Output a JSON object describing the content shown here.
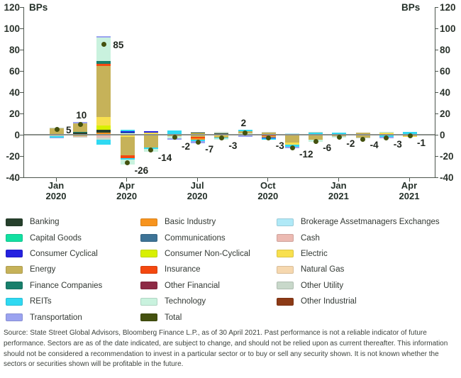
{
  "axes": {
    "unit_left": "BPs",
    "unit_right": "BPs",
    "y_ticks": [
      120,
      100,
      80,
      60,
      40,
      20,
      0,
      -20,
      -40
    ],
    "y_max": 120,
    "y_min": -40
  },
  "sectors": {
    "banking": {
      "label": "Banking",
      "color": "#26402c"
    },
    "capital_goods": {
      "label": "Capital Goods",
      "color": "#12e0a1"
    },
    "consumer_cyclical": {
      "label": "Consumer Cyclical",
      "color": "#2521e0"
    },
    "energy": {
      "label": "Energy",
      "color": "#c6b259"
    },
    "finance_companies": {
      "label": "Finance Companies",
      "color": "#187f6b"
    },
    "reits": {
      "label": "REITs",
      "color": "#2fd9f2"
    },
    "transportation": {
      "label": "Transportation",
      "color": "#9ba3f0"
    },
    "basic_industry": {
      "label": "Basic Industry",
      "color": "#f7941e"
    },
    "communications": {
      "label": "Communications",
      "color": "#3d7396"
    },
    "consumer_non_cyclical": {
      "label": "Consumer Non-Cyclical",
      "color": "#d8f000"
    },
    "insurance": {
      "label": "Insurance",
      "color": "#f4480f"
    },
    "other_financial": {
      "label": "Other Financial",
      "color": "#8d2a45"
    },
    "technology": {
      "label": "Technology",
      "color": "#c9f2de"
    },
    "total": {
      "label": "Total",
      "color": "#44510f"
    },
    "brokerage": {
      "label": "Brokerage Assetmanagers Exchanges",
      "color": "#b0e9f7"
    },
    "cash": {
      "label": "Cash",
      "color": "#ecbab2"
    },
    "electric": {
      "label": "Electric",
      "color": "#f8e04e"
    },
    "natural_gas": {
      "label": "Natural Gas",
      "color": "#f6d8af"
    },
    "other_utility": {
      "label": "Other Utility",
      "color": "#c8d8ca"
    },
    "other_industrial": {
      "label": "Other Industrial",
      "color": "#8c3a16"
    }
  },
  "legend": {
    "columns": [
      [
        "banking",
        "capital_goods",
        "consumer_cyclical",
        "energy",
        "finance_companies",
        "reits",
        "transportation"
      ],
      [
        "basic_industry",
        "communications",
        "consumer_non_cyclical",
        "insurance",
        "other_financial",
        "technology",
        "total"
      ],
      [
        "brokerage",
        "cash",
        "electric",
        "natural_gas",
        "other_utility",
        "other_industrial"
      ]
    ]
  },
  "chart_data": {
    "type": "bar",
    "subtype": "stacked-bars-with-total-dots",
    "title": "",
    "ylabel": "BPs",
    "ylim": [
      -40,
      120
    ],
    "total_marker_sector": "total",
    "months": [
      {
        "id": "2020-01",
        "tick_label": [
          "Jan",
          "2020"
        ],
        "total": 5,
        "label": "5",
        "label_placement": "right",
        "pos": [
          {
            "s": "insurance",
            "v": 0.6
          },
          {
            "s": "energy",
            "v": 5.4
          },
          {
            "s": "other_utility",
            "v": 1.0
          }
        ],
        "neg": [
          {
            "s": "banking",
            "v": 0.5
          },
          {
            "s": "other_utility",
            "v": 0.9
          },
          {
            "s": "reits",
            "v": 1.0
          },
          {
            "s": "transportation",
            "v": 1.1
          }
        ]
      },
      {
        "id": "2020-02",
        "tick_label": null,
        "total": 10,
        "label": "10",
        "label_placement": "above",
        "pos": [
          {
            "s": "insurance",
            "v": 0.9
          },
          {
            "s": "banking",
            "v": 0.8
          },
          {
            "s": "finance_companies",
            "v": 0.8
          },
          {
            "s": "energy",
            "v": 8.0
          },
          {
            "s": "transportation",
            "v": 1.5
          }
        ],
        "neg": [
          {
            "s": "energy",
            "v": 1.0
          },
          {
            "s": "cash",
            "v": 0.9
          },
          {
            "s": "other_utility",
            "v": 0.9
          }
        ]
      },
      {
        "id": "2020-03",
        "tick_label": null,
        "total": 85,
        "label": "85",
        "label_placement": "right",
        "pos": [
          {
            "s": "basic_industry",
            "v": 2
          },
          {
            "s": "banking",
            "v": 3
          },
          {
            "s": "consumer_non_cyclical",
            "v": 4
          },
          {
            "s": "electric",
            "v": 8
          },
          {
            "s": "energy",
            "v": 48
          },
          {
            "s": "insurance",
            "v": 2
          },
          {
            "s": "finance_companies",
            "v": 2.5
          },
          {
            "s": "technology",
            "v": 22
          },
          {
            "s": "transportation",
            "v": 1.5
          }
        ],
        "neg": [
          {
            "s": "cash",
            "v": 2.5
          },
          {
            "s": "other_utility",
            "v": 2.0
          },
          {
            "s": "reits",
            "v": 5.0
          }
        ]
      },
      {
        "id": "2020-04",
        "tick_label": [
          "Apr",
          "2020"
        ],
        "total": -26,
        "label": "-26",
        "label_placement": "below-right",
        "pos": [
          {
            "s": "banking",
            "v": 1.0
          },
          {
            "s": "finance_companies",
            "v": 1.2
          },
          {
            "s": "consumer_cyclical",
            "v": 1.2
          },
          {
            "s": "reits",
            "v": 1.6
          }
        ],
        "neg": [
          {
            "s": "electric",
            "v": 1.8
          },
          {
            "s": "energy",
            "v": 17.5
          },
          {
            "s": "insurance",
            "v": 2.8
          },
          {
            "s": "reits",
            "v": 1.5
          },
          {
            "s": "technology",
            "v": 4.4
          }
        ]
      },
      {
        "id": "2020-05",
        "tick_label": null,
        "total": -14,
        "label": "-14",
        "label_placement": "below-right",
        "pos": [
          {
            "s": "banking",
            "v": 0.9
          },
          {
            "s": "electric",
            "v": 1.2
          },
          {
            "s": "consumer_cyclical",
            "v": 1.4
          }
        ],
        "neg": [
          {
            "s": "energy",
            "v": 12.0
          },
          {
            "s": "reits",
            "v": 1.5
          },
          {
            "s": "technology",
            "v": 2.5
          }
        ]
      },
      {
        "id": "2020-06",
        "tick_label": null,
        "total": -2,
        "label": "-2",
        "label_placement": "below-right",
        "pos": [
          {
            "s": "other_utility",
            "v": 0.6
          },
          {
            "s": "reits",
            "v": 3.4
          }
        ],
        "neg": [
          {
            "s": "energy",
            "v": 1.6
          },
          {
            "s": "technology",
            "v": 1.5
          },
          {
            "s": "transportation",
            "v": 1.9
          }
        ]
      },
      {
        "id": "2020-07",
        "tick_label": [
          "Jul",
          "2020"
        ],
        "total": -7,
        "label": "-7",
        "label_placement": "below-right",
        "pos": [
          {
            "s": "electric",
            "v": 1.2
          },
          {
            "s": "banking",
            "v": 0.7
          },
          {
            "s": "other_utility",
            "v": 1.1
          }
        ],
        "neg": [
          {
            "s": "energy",
            "v": 1.7
          },
          {
            "s": "insurance",
            "v": 1.6
          },
          {
            "s": "basic_industry",
            "v": 1.2
          },
          {
            "s": "reits",
            "v": 1.4
          },
          {
            "s": "transportation",
            "v": 2.1
          }
        ]
      },
      {
        "id": "2020-08",
        "tick_label": null,
        "total": -3,
        "label": "-3",
        "label_placement": "below-right",
        "pos": [
          {
            "s": "energy",
            "v": 1.0
          },
          {
            "s": "banking",
            "v": 0.6
          },
          {
            "s": "other_utility",
            "v": 1.0
          }
        ],
        "neg": [
          {
            "s": "electric",
            "v": 1.2
          },
          {
            "s": "energy",
            "v": 1.2
          },
          {
            "s": "reits",
            "v": 1.0
          },
          {
            "s": "technology",
            "v": 1.1
          }
        ]
      },
      {
        "id": "2020-09",
        "tick_label": null,
        "total": 2,
        "label": "2",
        "label_placement": "above",
        "pos": [
          {
            "s": "technology",
            "v": 1.2
          },
          {
            "s": "energy",
            "v": 2.0
          },
          {
            "s": "reits",
            "v": 1.3
          }
        ],
        "neg": [
          {
            "s": "other_utility",
            "v": 0.9
          },
          {
            "s": "transportation",
            "v": 1.4
          }
        ]
      },
      {
        "id": "2020-10",
        "tick_label": [
          "Oct",
          "2020"
        ],
        "total": -3,
        "label": "-3",
        "label_placement": "below-right",
        "pos": [
          {
            "s": "energy",
            "v": 2.0
          },
          {
            "s": "other_utility",
            "v": 0.6
          }
        ],
        "neg": [
          {
            "s": "insurance",
            "v": 1.0
          },
          {
            "s": "energy",
            "v": 1.6
          },
          {
            "s": "consumer_cyclical",
            "v": 0.9
          },
          {
            "s": "reits",
            "v": 1.0
          }
        ]
      },
      {
        "id": "2020-11",
        "tick_label": null,
        "total": -12,
        "label": "-12",
        "label_placement": "below-right",
        "pos": [
          {
            "s": "other_utility",
            "v": 0.9
          },
          {
            "s": "brokerage",
            "v": 0.6
          }
        ],
        "neg": [
          {
            "s": "energy",
            "v": 7.5
          },
          {
            "s": "electric",
            "v": 1.5
          },
          {
            "s": "reits",
            "v": 2.0
          },
          {
            "s": "transportation",
            "v": 1.8
          }
        ]
      },
      {
        "id": "2020-12",
        "tick_label": null,
        "total": -6,
        "label": "-6",
        "label_placement": "below-right",
        "pos": [
          {
            "s": "electric",
            "v": 0.8
          },
          {
            "s": "reits",
            "v": 1.1
          },
          {
            "s": "other_utility",
            "v": 0.5
          }
        ],
        "neg": [
          {
            "s": "energy",
            "v": 4.8
          },
          {
            "s": "technology",
            "v": 2.0
          }
        ]
      },
      {
        "id": "2021-01",
        "tick_label": [
          "Jan",
          "2021"
        ],
        "total": -2,
        "label": "-2",
        "label_placement": "below-right",
        "pos": [
          {
            "s": "energy",
            "v": 0.8
          },
          {
            "s": "reits",
            "v": 1.5
          }
        ],
        "neg": [
          {
            "s": "energy",
            "v": 1.2
          },
          {
            "s": "other_utility",
            "v": 0.8
          },
          {
            "s": "technology",
            "v": 0.8
          }
        ]
      },
      {
        "id": "2021-02",
        "tick_label": null,
        "total": -4,
        "label": "-4",
        "label_placement": "below-right",
        "pos": [
          {
            "s": "electric",
            "v": 1.0
          },
          {
            "s": "energy",
            "v": 1.0
          }
        ],
        "neg": [
          {
            "s": "energy",
            "v": 2.4
          },
          {
            "s": "other_utility",
            "v": 1.0
          }
        ]
      },
      {
        "id": "2021-03",
        "tick_label": null,
        "total": -3,
        "label": "-3",
        "label_placement": "below-right",
        "pos": [
          {
            "s": "energy",
            "v": 0.8
          },
          {
            "s": "electric",
            "v": 1.6
          },
          {
            "s": "brokerage",
            "v": 0.5
          }
        ],
        "neg": [
          {
            "s": "reits",
            "v": 2.0
          },
          {
            "s": "transportation",
            "v": 1.3
          }
        ]
      },
      {
        "id": "2021-04",
        "tick_label": [
          "Apr",
          "2021"
        ],
        "total": -1,
        "label": "-1",
        "label_placement": "below-right",
        "pos": [
          {
            "s": "electric",
            "v": 1.0
          },
          {
            "s": "reits",
            "v": 1.5
          }
        ],
        "neg": [
          {
            "s": "energy",
            "v": 1.0
          },
          {
            "s": "electric",
            "v": 0.8
          }
        ]
      }
    ]
  },
  "footnote": "Source: State Street Global Advisors, Bloomberg Finance L.P., as of 30 April 2021. Past performance is not a reliable indicator of future performance. Sectors are as of the date indicated, are subject to change, and should not be relied upon as current thereafter. This information should not be considered a recommendation to invest in a particular sector or to buy or sell any security shown. It is not known whether the sectors or securities shown will be profitable in the future."
}
